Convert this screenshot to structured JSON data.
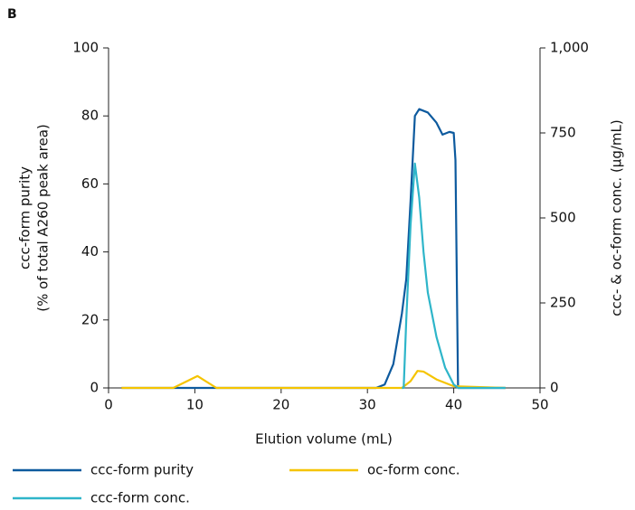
{
  "chart_data": {
    "type": "line",
    "panel_label": "B",
    "xlabel": "Elution volume (mL)",
    "ylabel": [
      "ccc-form purity",
      "(% of total A260 peak area)"
    ],
    "y2label": "ccc- & oc-form conc. (µg/mL)",
    "xlim": [
      0,
      50
    ],
    "xticks": [
      0,
      10,
      20,
      30,
      40,
      50
    ],
    "ylim": [
      0,
      100
    ],
    "yticks": [
      0,
      20,
      40,
      60,
      80,
      100
    ],
    "y2lim": [
      0,
      1000
    ],
    "y2ticks": [
      0,
      250,
      500,
      750,
      {
        "value": 1000,
        "label": "1,000"
      }
    ],
    "grid": false,
    "series": [
      {
        "name": "ccc-form purity",
        "color": "#0d5a9e",
        "axis": "y",
        "x": [
          1.5,
          31,
          32,
          33,
          34,
          34.5,
          35,
          35.5,
          36,
          37,
          38,
          38.7,
          39.5,
          40,
          40.2,
          40.5,
          46
        ],
        "values": [
          0,
          0,
          1,
          7,
          22,
          32,
          55,
          80,
          82,
          81,
          78,
          74.5,
          75.3,
          75,
          67,
          0,
          0
        ]
      },
      {
        "name": "oc-form conc.",
        "color": "#f5c400",
        "axis": "y2",
        "x": [
          1.5,
          7.5,
          10.3,
          12.5,
          34,
          35,
          35.8,
          36.5,
          38,
          40,
          46
        ],
        "values": [
          0,
          0,
          35,
          0,
          0,
          20,
          50,
          48,
          25,
          5,
          0
        ]
      },
      {
        "name": "ccc-form conc.",
        "color": "#2eb5c9",
        "axis": "y2",
        "x": [
          34,
          34.2,
          34.5,
          35,
          35.5,
          36,
          36.5,
          37,
          38,
          39,
          40,
          40.5,
          46
        ],
        "values": [
          0,
          0,
          200,
          480,
          660,
          560,
          400,
          280,
          150,
          60,
          10,
          0,
          0
        ]
      }
    ]
  }
}
